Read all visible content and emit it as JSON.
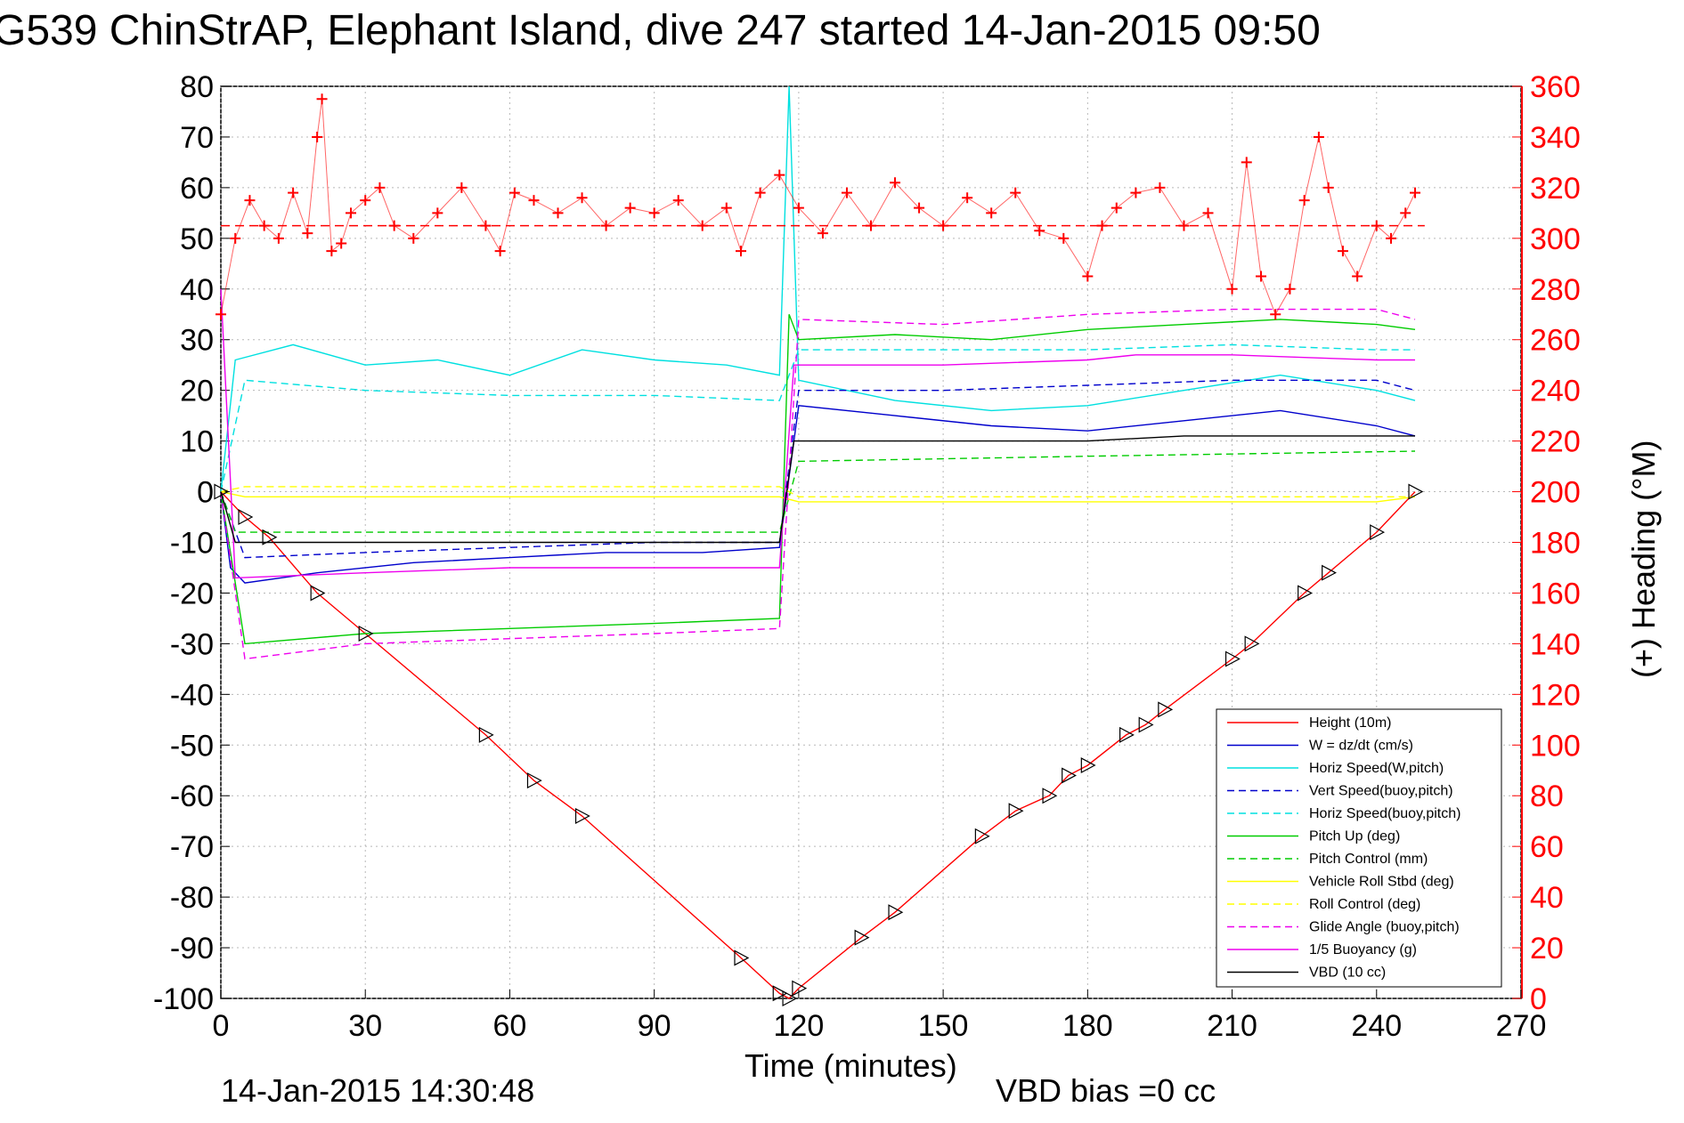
{
  "chart_data": {
    "type": "line",
    "title": "G539 ChinStrAP, Elephant Island, dive 247 started 14-Jan-2015 09:50",
    "xlabel": "Time (minutes)",
    "ylabel_right": "(+) Heading (°M)",
    "timestamp": "14-Jan-2015 14:30:48",
    "vbd_bias": "VBD bias =0 cc",
    "xlim": [
      0,
      270
    ],
    "ylim": [
      -100,
      80
    ],
    "ylim_right": [
      0,
      360
    ],
    "xticks": [
      "0",
      "30",
      "60",
      "90",
      "120",
      "150",
      "180",
      "210",
      "240",
      "270"
    ],
    "yticks": [
      "80",
      "70",
      "60",
      "50",
      "40",
      "30",
      "20",
      "10",
      "0",
      "-10",
      "-20",
      "-30",
      "-40",
      "-50",
      "-60",
      "-70",
      "-80",
      "-90",
      "-100"
    ],
    "yticks_right": [
      "360",
      "340",
      "320",
      "300",
      "280",
      "260",
      "240",
      "220",
      "200",
      "180",
      "160",
      "140",
      "120",
      "100",
      "80",
      "60",
      "40",
      "20",
      "0"
    ],
    "grid": true,
    "legend_position": "bottom-right",
    "series": [
      {
        "name": "Height (10m)",
        "color": "#ff0000",
        "style": "solid",
        "x": [
          0,
          5,
          10,
          20,
          30,
          55,
          65,
          75,
          108,
          116,
          118,
          120,
          133,
          140,
          158,
          165,
          172,
          176,
          180,
          188,
          192,
          196,
          210,
          214,
          225,
          230,
          240,
          248
        ],
        "y": [
          0,
          -5,
          -9,
          -20,
          -28,
          -48,
          -57,
          -64,
          -92,
          -99,
          -100,
          -98,
          -88,
          -83,
          -68,
          -63,
          -60,
          -56,
          -54,
          -48,
          -46,
          -43,
          -33,
          -30,
          -20,
          -16,
          -8,
          0
        ]
      },
      {
        "name": "W = dz/dt (cm/s)",
        "color": "#0000cc",
        "style": "solid",
        "x": [
          0,
          2,
          5,
          20,
          40,
          60,
          80,
          100,
          116,
          119,
          120,
          140,
          160,
          180,
          200,
          220,
          240,
          248
        ],
        "y": [
          0,
          -15,
          -18,
          -16,
          -14,
          -13,
          -12,
          -12,
          -11,
          10,
          17,
          15,
          13,
          12,
          14,
          16,
          13,
          11
        ]
      },
      {
        "name": "Horiz Speed(W,pitch)",
        "color": "#00e0e0",
        "style": "solid",
        "x": [
          0,
          3,
          15,
          30,
          45,
          60,
          75,
          90,
          105,
          116,
          118,
          120,
          140,
          160,
          180,
          200,
          220,
          240,
          248
        ],
        "y": [
          0,
          26,
          29,
          25,
          26,
          23,
          28,
          26,
          25,
          23,
          80,
          22,
          18,
          16,
          17,
          20,
          23,
          20,
          18
        ]
      },
      {
        "name": "Vert Speed(buoy,pitch)",
        "color": "#0000cc",
        "style": "dashed",
        "x": [
          0,
          5,
          30,
          60,
          90,
          116,
          120,
          150,
          180,
          210,
          240,
          248
        ],
        "y": [
          0,
          -13,
          -12,
          -11,
          -10,
          -10,
          20,
          20,
          21,
          22,
          22,
          20
        ]
      },
      {
        "name": "Horiz Speed(buoy,pitch)",
        "color": "#00e0e0",
        "style": "dashed",
        "x": [
          0,
          5,
          30,
          60,
          90,
          116,
          120,
          150,
          180,
          210,
          240,
          248
        ],
        "y": [
          0,
          22,
          20,
          19,
          19,
          18,
          28,
          28,
          28,
          29,
          28,
          28
        ]
      },
      {
        "name": "Pitch Up (deg)",
        "color": "#00cc00",
        "style": "solid",
        "x": [
          0,
          5,
          30,
          60,
          90,
          116,
          118,
          120,
          140,
          160,
          180,
          200,
          220,
          240,
          248
        ],
        "y": [
          0,
          -30,
          -28,
          -27,
          -26,
          -25,
          35,
          30,
          31,
          30,
          32,
          33,
          34,
          33,
          32
        ]
      },
      {
        "name": "Pitch Control (mm)",
        "color": "#00cc00",
        "style": "dashed",
        "x": [
          0,
          3,
          60,
          116,
          120,
          180,
          248
        ],
        "y": [
          0,
          -8,
          -8,
          -8,
          6,
          7,
          8
        ]
      },
      {
        "name": "Vehicle Roll Stbd (deg)",
        "color": "#ffff00",
        "style": "solid",
        "x": [
          0,
          5,
          30,
          60,
          90,
          116,
          120,
          150,
          180,
          210,
          240,
          248
        ],
        "y": [
          0,
          -1,
          -1,
          -1,
          -1,
          -1,
          -2,
          -2,
          -2,
          -2,
          -2,
          -1
        ]
      },
      {
        "name": "Roll Control (deg)",
        "color": "#ffff00",
        "style": "dashed",
        "x": [
          0,
          5,
          30,
          60,
          90,
          116,
          120,
          150,
          180,
          210,
          240,
          248
        ],
        "y": [
          0,
          1,
          1,
          1,
          1,
          1,
          -1,
          -1,
          -1,
          -1,
          -1,
          -1
        ]
      },
      {
        "name": "Glide Angle (buoy,pitch)",
        "color": "#ee00ee",
        "style": "dashed",
        "x": [
          0,
          5,
          30,
          60,
          90,
          116,
          120,
          150,
          180,
          210,
          240,
          248
        ],
        "y": [
          0,
          -33,
          -30,
          -29,
          -28,
          -27,
          34,
          33,
          35,
          36,
          36,
          34
        ]
      },
      {
        "name": "1/5 Buoyancy (g)",
        "color": "#ee00ee",
        "style": "solid",
        "x": [
          0,
          3,
          30,
          60,
          90,
          116,
          119,
          120,
          150,
          180,
          190,
          210,
          240,
          248
        ],
        "y": [
          40,
          -17,
          -16,
          -15,
          -15,
          -15,
          25,
          25,
          25,
          26,
          27,
          27,
          26,
          26
        ]
      },
      {
        "name": "VBD (10 cc)",
        "color": "#000000",
        "style": "solid",
        "x": [
          0,
          3,
          60,
          116,
          119,
          120,
          180,
          200,
          248
        ],
        "y": [
          0,
          -10,
          -10,
          -10,
          10,
          10,
          10,
          11,
          11
        ]
      }
    ],
    "heading_series": {
      "color": "#ff0000",
      "marker": "+",
      "axis": "right",
      "mean": 305,
      "x": [
        0,
        3,
        6,
        9,
        12,
        15,
        18,
        20,
        21,
        23,
        25,
        27,
        30,
        33,
        36,
        40,
        45,
        50,
        55,
        58,
        61,
        65,
        70,
        75,
        80,
        85,
        90,
        95,
        100,
        105,
        108,
        112,
        116,
        120,
        125,
        130,
        135,
        140,
        145,
        150,
        155,
        160,
        165,
        170,
        175,
        180,
        183,
        186,
        190,
        195,
        200,
        205,
        210,
        213,
        216,
        219,
        222,
        225,
        228,
        230,
        233,
        236,
        240,
        243,
        246,
        248
      ],
      "y": [
        270,
        300,
        315,
        305,
        300,
        318,
        302,
        340,
        355,
        295,
        298,
        310,
        315,
        320,
        305,
        300,
        310,
        320,
        305,
        295,
        318,
        315,
        310,
        316,
        305,
        312,
        310,
        315,
        305,
        312,
        295,
        318,
        325,
        312,
        302,
        318,
        305,
        322,
        312,
        305,
        316,
        310,
        318,
        303,
        300,
        285,
        305,
        312,
        318,
        320,
        305,
        310,
        280,
        330,
        285,
        270,
        280,
        315,
        340,
        320,
        295,
        285,
        305,
        300,
        310,
        318
      ]
    }
  }
}
